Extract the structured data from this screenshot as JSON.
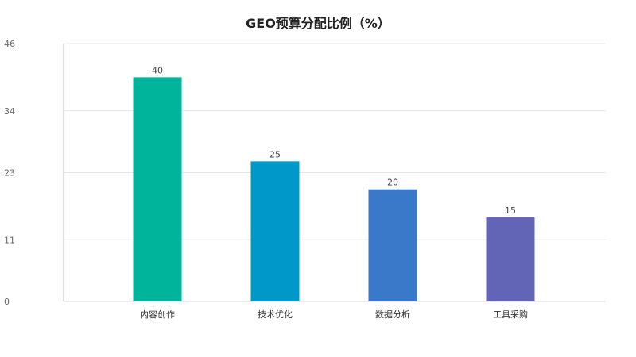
{
  "chart_data": {
    "type": "bar",
    "title": "GEO预算分配比例（%）",
    "categories": [
      "内容创作",
      "技术优化",
      "数据分析",
      "工具采购"
    ],
    "values": [
      40,
      25,
      20,
      15
    ],
    "colors": [
      "#00b39b",
      "#0098c8",
      "#3a78c9",
      "#6264b5"
    ],
    "yticks": [
      0,
      11,
      23,
      34,
      46
    ],
    "ylim": [
      0,
      46
    ],
    "grid": true,
    "xlabel": "",
    "ylabel": ""
  }
}
